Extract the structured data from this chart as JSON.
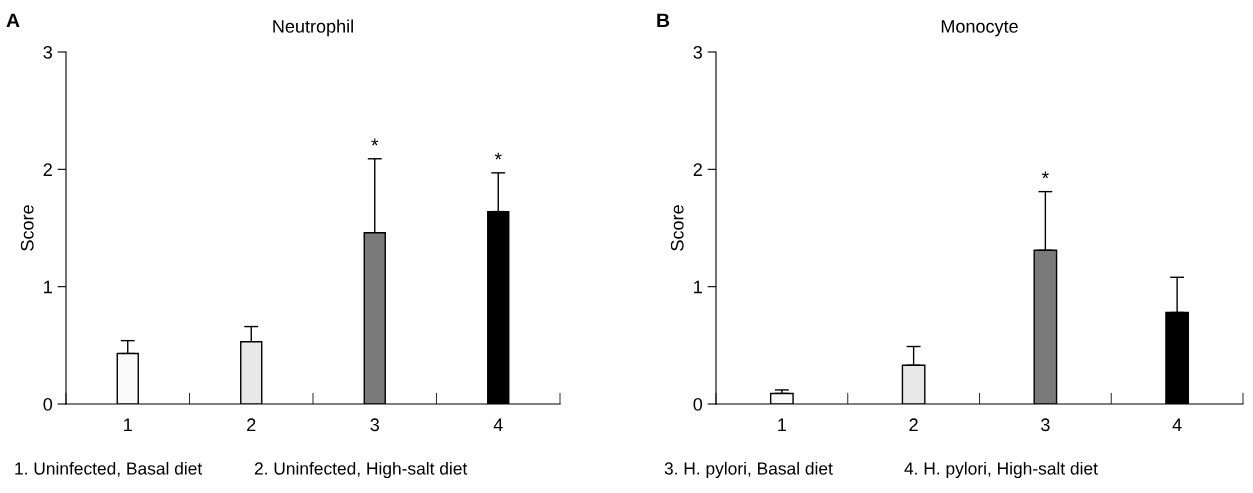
{
  "chart_data": [
    {
      "type": "bar",
      "title": "Neutrophil",
      "ylabel": "Score",
      "categories": [
        "1",
        "2",
        "3",
        "4"
      ],
      "values": [
        0.43,
        0.53,
        1.46,
        1.64
      ],
      "colors": [
        "#fafafa",
        "#e8e8e8",
        "#7a7a7a",
        "#000000"
      ],
      "errors": [
        [
          0.43,
          0.54
        ],
        [
          0.53,
          0.66
        ],
        [
          1.46,
          2.09
        ],
        [
          1.64,
          1.97
        ]
      ],
      "ylim": [
        0,
        3
      ],
      "yticks": [
        0,
        1,
        2,
        3
      ],
      "grid": false,
      "legend": false,
      "annotations": [
        "A",
        "1. Uninfected, Basal diet",
        "2. Uninfected, High-salt diet",
        {
          "text": "*",
          "x": "3",
          "y": 2.09
        },
        {
          "text": "*",
          "x": "4",
          "y": 1.97
        }
      ]
    },
    {
      "type": "bar",
      "title": "Monocyte",
      "ylabel": "Score",
      "categories": [
        "1",
        "2",
        "3",
        "4"
      ],
      "values": [
        0.09,
        0.33,
        1.31,
        0.78
      ],
      "colors": [
        "#fafafa",
        "#e8e8e8",
        "#7a7a7a",
        "#000000"
      ],
      "errors": [
        [
          0.09,
          0.12
        ],
        [
          0.33,
          0.49
        ],
        [
          1.31,
          1.81
        ],
        [
          0.78,
          1.08
        ]
      ],
      "ylim": [
        0,
        3
      ],
      "yticks": [
        0,
        1,
        2,
        3
      ],
      "grid": false,
      "legend": false,
      "annotations": [
        "B",
        "3. H. pylori, Basal diet",
        "4. H. pylori, High-salt diet",
        {
          "text": "*",
          "x": "3",
          "y": 1.81
        }
      ]
    }
  ]
}
